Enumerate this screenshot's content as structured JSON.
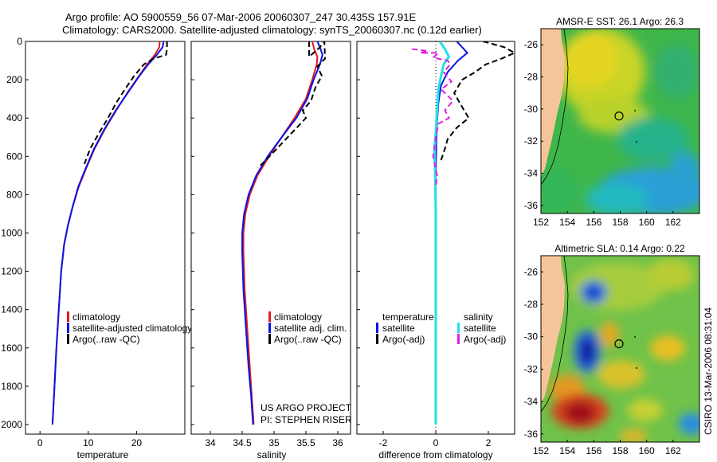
{
  "header": {
    "line1": "Argo profile: AO 5900559_56 07-Mar-2006 20060307_247 30.435S 157.91E",
    "line2": "Climatology: CARS2000. Satellite-adjusted climatology: synTS_20060307.nc (0.12d earlier)"
  },
  "side_label": "CSIRO 13-Mar-2006 08:31:04",
  "colors": {
    "climatology": "#e31a1c",
    "satellite": "#0a14e6",
    "argo": "#000000",
    "salinity_sat": "#22e0e8",
    "salinity_argo": "#e020e0",
    "land": "#f6c49a"
  },
  "chart_data": [
    {
      "type": "line",
      "title": "",
      "xlabel": "temperature",
      "ylabel": "",
      "xlim": [
        -3,
        30
      ],
      "ylim": [
        2050,
        0
      ],
      "xticks": [
        0,
        10,
        20
      ],
      "yticks": [
        0,
        200,
        400,
        600,
        800,
        1000,
        1200,
        1400,
        1600,
        1800,
        2000
      ],
      "legend": {
        "position": "bottom-right",
        "labels": [
          "climatology",
          "satellite-adjusted climatology",
          "Argo(..raw -QC)"
        ]
      },
      "series": [
        {
          "name": "climatology",
          "points": [
            [
              24.8,
              0
            ],
            [
              24.7,
              30
            ],
            [
              23.8,
              70
            ],
            [
              22.2,
              120
            ],
            [
              20.5,
              180
            ],
            [
              18.3,
              260
            ],
            [
              15.8,
              360
            ],
            [
              13.4,
              460
            ],
            [
              11.3,
              560
            ],
            [
              9.6,
              660
            ],
            [
              8.0,
              760
            ],
            [
              6.8,
              860
            ],
            [
              5.8,
              960
            ],
            [
              5.0,
              1060
            ],
            [
              4.4,
              1200
            ],
            [
              3.9,
              1400
            ],
            [
              3.4,
              1600
            ],
            [
              3.0,
              1800
            ],
            [
              2.6,
              2000
            ]
          ]
        },
        {
          "name": "satellite-adjusted climatology",
          "points": [
            [
              25.6,
              0
            ],
            [
              25.4,
              30
            ],
            [
              24.2,
              70
            ],
            [
              22.4,
              120
            ],
            [
              20.6,
              180
            ],
            [
              18.4,
              260
            ],
            [
              15.7,
              360
            ],
            [
              13.3,
              460
            ],
            [
              11.2,
              560
            ],
            [
              9.5,
              660
            ],
            [
              7.9,
              760
            ],
            [
              6.8,
              860
            ],
            [
              5.8,
              960
            ],
            [
              5.0,
              1060
            ],
            [
              4.4,
              1200
            ],
            [
              3.9,
              1400
            ],
            [
              3.4,
              1600
            ],
            [
              3.0,
              1800
            ],
            [
              2.6,
              2000
            ]
          ]
        },
        {
          "name": "Argo(..raw -QC)",
          "points": [
            [
              26.3,
              0
            ],
            [
              26.3,
              40
            ],
            [
              26.1,
              70
            ],
            [
              23.5,
              90
            ],
            [
              21.5,
              120
            ],
            [
              19.5,
              180
            ],
            [
              17.6,
              250
            ],
            [
              15.8,
              320
            ],
            [
              14.1,
              400
            ],
            [
              12.2,
              480
            ],
            [
              10.4,
              560
            ],
            [
              9.2,
              640
            ]
          ]
        }
      ]
    },
    {
      "type": "line",
      "title": "",
      "xlabel": "salinity",
      "ylabel": "",
      "xlim": [
        33.7,
        36.2
      ],
      "ylim": [
        2050,
        0
      ],
      "xticks": [
        34,
        34.5,
        35,
        35.5,
        36
      ],
      "tick_labels": [
        "34",
        "34.5",
        "35",
        "35.5",
        "36"
      ],
      "legend": {
        "position": "bottom-right",
        "labels": [
          "climatology",
          "satellite adj. clim.",
          "Argo(..raw -QC)"
        ]
      },
      "annotation": [
        "US ARGO PROJECT",
        "PI: STEPHEN RISER"
      ],
      "series": [
        {
          "name": "climatology",
          "points": [
            [
              35.6,
              0
            ],
            [
              35.63,
              40
            ],
            [
              35.68,
              80
            ],
            [
              35.67,
              120
            ],
            [
              35.6,
              200
            ],
            [
              35.5,
              300
            ],
            [
              35.32,
              400
            ],
            [
              35.12,
              500
            ],
            [
              34.92,
              600
            ],
            [
              34.74,
              700
            ],
            [
              34.62,
              800
            ],
            [
              34.55,
              900
            ],
            [
              34.52,
              1000
            ],
            [
              34.52,
              1100
            ],
            [
              34.54,
              1300
            ],
            [
              34.58,
              1500
            ],
            [
              34.62,
              1700
            ],
            [
              34.65,
              1850
            ],
            [
              34.68,
              2000
            ]
          ]
        },
        {
          "name": "satellite adj. clim.",
          "points": [
            [
              35.68,
              0
            ],
            [
              35.72,
              30
            ],
            [
              35.76,
              70
            ],
            [
              35.72,
              120
            ],
            [
              35.62,
              200
            ],
            [
              35.52,
              300
            ],
            [
              35.35,
              400
            ],
            [
              35.12,
              500
            ],
            [
              34.9,
              600
            ],
            [
              34.72,
              700
            ],
            [
              34.6,
              800
            ],
            [
              34.53,
              900
            ],
            [
              34.5,
              1000
            ],
            [
              34.5,
              1100
            ],
            [
              34.52,
              1300
            ],
            [
              34.56,
              1500
            ],
            [
              34.6,
              1700
            ],
            [
              34.64,
              1850
            ],
            [
              34.67,
              2000
            ]
          ]
        },
        {
          "name": "Argo(..raw -QC)",
          "points": [
            [
              35.55,
              0
            ],
            [
              35.55,
              80
            ],
            [
              35.72,
              30
            ],
            [
              35.79,
              0
            ],
            [
              35.8,
              90
            ],
            [
              35.68,
              130
            ],
            [
              35.75,
              180
            ],
            [
              35.65,
              240
            ],
            [
              35.58,
              310
            ],
            [
              35.45,
              360
            ],
            [
              35.5,
              400
            ],
            [
              35.3,
              470
            ],
            [
              35.1,
              540
            ],
            [
              34.9,
              610
            ],
            [
              34.75,
              660
            ]
          ]
        }
      ]
    },
    {
      "type": "line",
      "title": "",
      "xlabel": "difference from climatology",
      "ylabel": "",
      "xlim": [
        -3,
        3
      ],
      "ylim": [
        2050,
        0
      ],
      "xticks": [
        -2,
        0,
        2
      ],
      "legend": {
        "position": "bottom",
        "groups": [
          "temperature",
          "salinity"
        ],
        "labels": [
          "satellite",
          "Argo(-adj)",
          "satellite",
          "Argo(-adj)"
        ]
      },
      "series": [
        {
          "name": "temperature satellite",
          "points": [
            [
              0.8,
              0
            ],
            [
              1.0,
              30
            ],
            [
              1.2,
              60
            ],
            [
              0.85,
              100
            ],
            [
              0.45,
              160
            ],
            [
              0.2,
              230
            ],
            [
              0.1,
              320
            ],
            [
              0.05,
              420
            ],
            [
              0.02,
              520
            ],
            [
              0.0,
              700
            ],
            [
              0.0,
              900
            ],
            [
              0.0,
              1200
            ],
            [
              0.0,
              1600
            ],
            [
              0.0,
              2000
            ]
          ]
        },
        {
          "name": "temperature Argo(-adj)",
          "points": [
            [
              1.8,
              0
            ],
            [
              2.6,
              30
            ],
            [
              3.0,
              60
            ],
            [
              2.5,
              90
            ],
            [
              1.9,
              120
            ],
            [
              1.5,
              160
            ],
            [
              1.0,
              200
            ],
            [
              0.7,
              270
            ],
            [
              0.95,
              330
            ],
            [
              1.25,
              400
            ],
            [
              0.8,
              450
            ],
            [
              0.45,
              510
            ],
            [
              0.35,
              560
            ],
            [
              0.2,
              620
            ]
          ]
        },
        {
          "name": "salinity satellite",
          "points": [
            [
              0.15,
              0
            ],
            [
              0.35,
              40
            ],
            [
              0.5,
              80
            ],
            [
              0.3,
              120
            ],
            [
              0.2,
              180
            ],
            [
              0.1,
              250
            ],
            [
              0.05,
              360
            ],
            [
              0.0,
              480
            ],
            [
              -0.05,
              560
            ],
            [
              -0.02,
              700
            ],
            [
              0.0,
              900
            ],
            [
              0.0,
              1200
            ],
            [
              0.0,
              1600
            ],
            [
              0.0,
              2000
            ]
          ]
        },
        {
          "name": "salinity Argo(-adj)",
          "points": [
            [
              -0.9,
              40
            ],
            [
              -0.3,
              50
            ],
            [
              -0.6,
              60
            ],
            [
              0.1,
              60
            ],
            [
              -0.1,
              85
            ],
            [
              0.45,
              100
            ],
            [
              0.55,
              120
            ],
            [
              0.3,
              160
            ],
            [
              0.6,
              210
            ],
            [
              0.2,
              250
            ],
            [
              0.65,
              310
            ],
            [
              0.35,
              360
            ],
            [
              0.5,
              400
            ],
            [
              0.1,
              430
            ],
            [
              0.0,
              500
            ],
            [
              -0.1,
              600
            ],
            [
              0.05,
              700
            ],
            [
              0.0,
              760
            ]
          ]
        }
      ]
    },
    {
      "type": "heatmap",
      "title": "AMSR-E SST: 26.1 Argo: 26.3",
      "xlabel": "",
      "ylabel": "",
      "xlim": [
        152,
        164
      ],
      "ylim": [
        -36.5,
        -25
      ],
      "xticks": [
        152,
        154,
        156,
        158,
        160,
        162
      ],
      "yticks": [
        -26,
        -28,
        -30,
        -32,
        -34,
        -36
      ],
      "argo_position": [
        157.91,
        -30.435
      ]
    },
    {
      "type": "heatmap",
      "title": "Altimetric SLA: 0.14 Argo: 0.22",
      "xlabel": "",
      "ylabel": "",
      "xlim": [
        152,
        164
      ],
      "ylim": [
        -36.5,
        -25
      ],
      "xticks": [
        152,
        154,
        156,
        158,
        160,
        162
      ],
      "yticks": [
        -26,
        -28,
        -30,
        -32,
        -34,
        -36
      ],
      "argo_position": [
        157.91,
        -30.435
      ]
    }
  ]
}
